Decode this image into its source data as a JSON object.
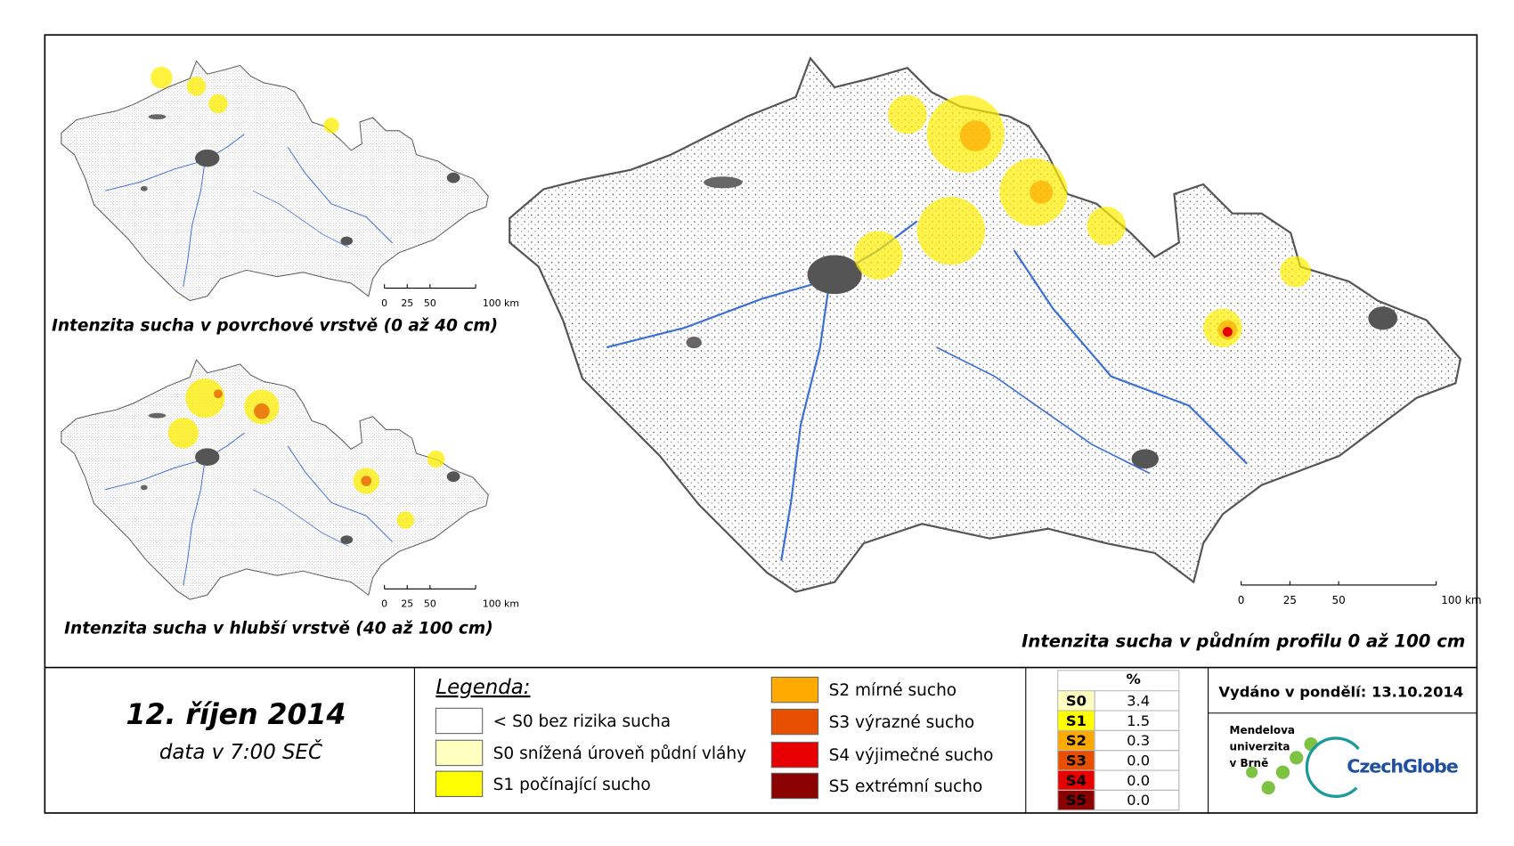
{
  "maps": [
    {
      "caption": "Intenzita sucha v povrchové vrstvě (0 až 40 cm)",
      "scale_labels": [
        "0",
        "25",
        "50",
        "100 km"
      ]
    },
    {
      "caption": "Intenzita sucha v hlubší vrstvě (40 až 100 cm)",
      "scale_labels": [
        "0",
        "25",
        "50",
        "100 km"
      ]
    },
    {
      "caption": "Intenzita sucha v půdním profilu 0 až 100 cm",
      "scale_labels": [
        "0",
        "25",
        "50",
        "100 km"
      ]
    }
  ],
  "date": "12. říjen 2014",
  "time": "data v 7:00 SEČ",
  "legend": {
    "title": "Legenda:",
    "items": [
      {
        "label": "< S0 bez rizika sucha",
        "color": "#ffffff"
      },
      {
        "label": "S0 snížená úroveň půdní vláhy",
        "color": "#ffffc0"
      },
      {
        "label": "S1 počínající sucho",
        "color": "#ffff00"
      },
      {
        "label": "S2 mírné sucho",
        "color": "#ffaa00"
      },
      {
        "label": "S3 výrazné sucho",
        "color": "#e65000"
      },
      {
        "label": "S4 výjimečné sucho",
        "color": "#e60000"
      },
      {
        "label": "S5 extrémní sucho",
        "color": "#8b0000"
      }
    ]
  },
  "stats": {
    "header": "%",
    "rows": [
      {
        "class": "S0",
        "value": "3.4",
        "color": "#ffffc0"
      },
      {
        "class": "S1",
        "value": "1.5",
        "color": "#ffff00"
      },
      {
        "class": "S2",
        "value": "0.3",
        "color": "#ffaa00"
      },
      {
        "class": "S3",
        "value": "0.0",
        "color": "#e65000"
      },
      {
        "class": "S4",
        "value": "0.0",
        "color": "#e60000"
      },
      {
        "class": "S5",
        "value": "0.0",
        "color": "#8b0000"
      }
    ]
  },
  "issued": "Vydáno v pondělí: 13.10.2014",
  "logos": {
    "mendel": [
      "Mendelova",
      "univerzita",
      "v Brně"
    ],
    "czechglobe": "CzechGlobe"
  }
}
